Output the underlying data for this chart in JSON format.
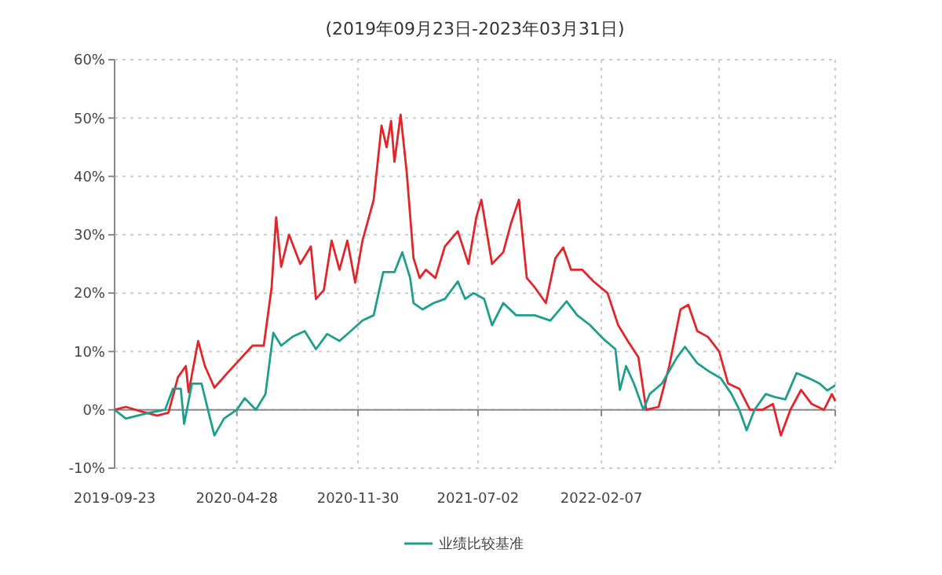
{
  "chart_data": {
    "type": "line",
    "title": "(2019年09月23日-2023年03月31日)",
    "xlim": [
      "2019-09-23",
      "2023-03-31"
    ],
    "xticks": [
      {
        "value": "2019-09-23",
        "label": "2019-09-23"
      },
      {
        "value": "2020-04-28",
        "label": "2020-04-28"
      },
      {
        "value": "2020-11-30",
        "label": "2020-11-30"
      },
      {
        "value": "2021-07-02",
        "label": "2021-07-02"
      },
      {
        "value": "2022-02-07",
        "label": "2022-02-07"
      },
      {
        "value": "2022-09-05",
        "label": null
      },
      {
        "value": "2023-03-31",
        "label": null
      }
    ],
    "ylim": [
      -10,
      60
    ],
    "yticks": [
      {
        "value": -10,
        "label": "-10%"
      },
      {
        "value": 0,
        "label": "0%"
      },
      {
        "value": 10,
        "label": "10%"
      },
      {
        "value": 20,
        "label": "20%"
      },
      {
        "value": 30,
        "label": "30%"
      },
      {
        "value": 40,
        "label": "40%"
      },
      {
        "value": 50,
        "label": "50%"
      },
      {
        "value": 60,
        "label": "60%"
      }
    ],
    "grid": true,
    "legend": "bottom",
    "marker": "none",
    "line_style": "solid",
    "series": [
      {
        "color": "#e0262a",
        "x": [
          "2019-09-23",
          "2019-10-13",
          "2019-11-10",
          "2019-12-08",
          "2019-12-28",
          "2020-01-14",
          "2020-01-28",
          "2020-02-02",
          "2020-02-19",
          "2020-03-02",
          "2020-03-19",
          "2020-04-13",
          "2020-05-26",
          "2020-06-15",
          "2020-06-29",
          "2020-07-07",
          "2020-07-16",
          "2020-07-30",
          "2020-08-19",
          "2020-09-07",
          "2020-09-16",
          "2020-09-30",
          "2020-10-14",
          "2020-10-28",
          "2020-11-11",
          "2020-11-25",
          "2020-12-08",
          "2020-12-28",
          "2021-01-11",
          "2021-01-20",
          "2021-01-28",
          "2021-02-03",
          "2021-02-14",
          "2021-02-25",
          "2021-03-09",
          "2021-03-20",
          "2021-03-31",
          "2021-04-17",
          "2021-05-04",
          "2021-05-27",
          "2021-06-15",
          "2021-06-29",
          "2021-07-08",
          "2021-07-27",
          "2021-08-16",
          "2021-08-30",
          "2021-09-13",
          "2021-09-27",
          "2021-10-11",
          "2021-10-31",
          "2021-11-17",
          "2021-12-01",
          "2021-12-15",
          "2022-01-04",
          "2022-01-24",
          "2022-02-18",
          "2022-03-09",
          "2022-03-26",
          "2022-04-14",
          "2022-04-28",
          "2022-05-20",
          "2022-06-08",
          "2022-06-28",
          "2022-07-12",
          "2022-07-28",
          "2022-08-16",
          "2022-09-05",
          "2022-09-21",
          "2022-10-11",
          "2022-10-30",
          "2022-11-21",
          "2022-12-10",
          "2022-12-24",
          "2023-01-10",
          "2023-01-29",
          "2023-02-17",
          "2023-03-11",
          "2023-03-25",
          "2023-03-31"
        ],
        "values": [
          0,
          0.5,
          -0.3,
          -1,
          -0.5,
          5.6,
          7.5,
          3,
          11.8,
          7.5,
          3.8,
          6.5,
          11,
          11,
          21,
          33,
          24.5,
          30,
          25,
          28,
          19,
          20.5,
          29,
          24,
          29,
          21.8,
          29,
          36,
          48.7,
          45,
          49.5,
          42.5,
          50.6,
          40.6,
          26,
          22.6,
          24,
          22.6,
          28,
          30.6,
          25,
          33,
          36,
          25,
          27,
          32,
          36,
          22.6,
          21,
          18.3,
          26,
          27.8,
          24,
          24,
          22,
          20,
          14.5,
          11.8,
          9,
          0,
          0.5,
          7.5,
          17.2,
          18,
          13.5,
          12.5,
          10,
          4.5,
          3.6,
          0,
          0,
          1,
          -4.4,
          0,
          3.4,
          1,
          0,
          2.7,
          1.5
        ]
      },
      {
        "name": "业绩比较基准",
        "color": "#1f9e8e",
        "x": [
          "2019-09-23",
          "2019-10-13",
          "2019-11-24",
          "2019-12-22",
          "2020-01-05",
          "2020-01-19",
          "2020-01-25",
          "2020-02-08",
          "2020-02-25",
          "2020-03-10",
          "2020-03-19",
          "2020-04-05",
          "2020-04-28",
          "2020-05-12",
          "2020-06-01",
          "2020-06-18",
          "2020-07-02",
          "2020-07-16",
          "2020-08-05",
          "2020-08-27",
          "2020-09-16",
          "2020-10-06",
          "2020-10-28",
          "2020-11-17",
          "2020-12-08",
          "2020-12-28",
          "2021-01-14",
          "2021-02-03",
          "2021-02-17",
          "2021-03-03",
          "2021-03-09",
          "2021-03-25",
          "2021-04-14",
          "2021-05-04",
          "2021-05-27",
          "2021-06-09",
          "2021-06-24",
          "2021-07-13",
          "2021-07-27",
          "2021-08-16",
          "2021-09-08",
          "2021-10-11",
          "2021-11-08",
          "2021-12-07",
          "2021-12-26",
          "2022-01-18",
          "2022-02-10",
          "2022-03-04",
          "2022-03-12",
          "2022-03-23",
          "2022-04-06",
          "2022-04-23",
          "2022-05-04",
          "2022-05-26",
          "2022-06-22",
          "2022-07-06",
          "2022-07-28",
          "2022-08-16",
          "2022-09-08",
          "2022-09-27",
          "2022-10-11",
          "2022-10-24",
          "2022-11-07",
          "2022-11-27",
          "2022-12-13",
          "2023-01-01",
          "2023-01-21",
          "2023-02-12",
          "2023-03-03",
          "2023-03-17",
          "2023-03-31"
        ],
        "values": [
          0,
          -1.5,
          -0.5,
          0,
          3.6,
          3.6,
          -2.4,
          4.5,
          4.5,
          -1,
          -4.4,
          -1.5,
          0,
          2,
          0,
          2.7,
          13.2,
          11,
          12.5,
          13.5,
          10.4,
          13,
          11.8,
          13.5,
          15.3,
          16.2,
          23.6,
          23.6,
          27,
          22.6,
          18.3,
          17.2,
          18.3,
          19,
          22,
          19,
          20,
          19,
          14.5,
          18.3,
          16.2,
          16.2,
          15.3,
          18.6,
          16.2,
          14.5,
          12.2,
          10.4,
          3.4,
          7.5,
          4.5,
          0,
          2.7,
          4.5,
          9,
          10.8,
          8,
          6.7,
          5.4,
          2.7,
          0,
          -3.5,
          0,
          2.7,
          2.2,
          1.8,
          6.3,
          5.4,
          4.5,
          3.3,
          4.2
        ]
      }
    ]
  }
}
